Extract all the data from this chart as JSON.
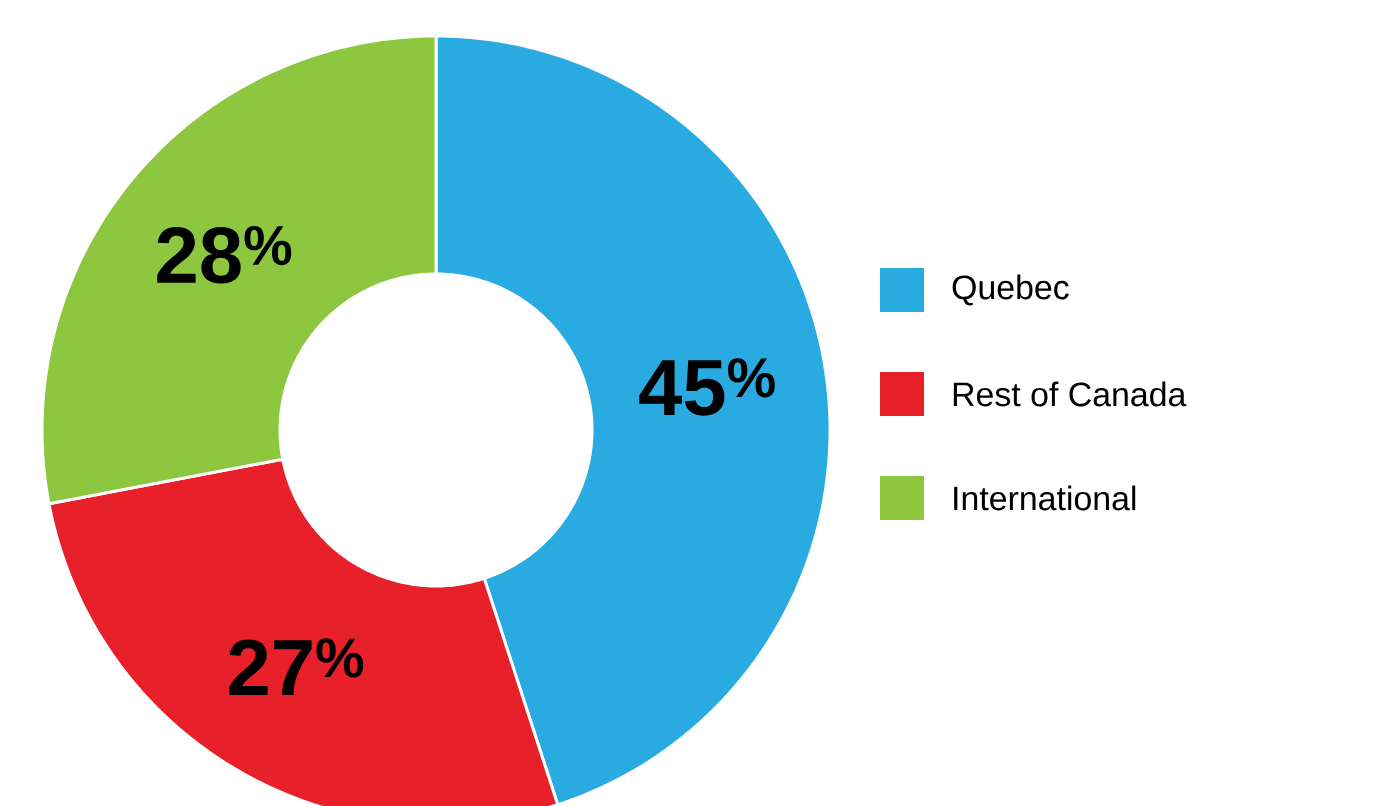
{
  "chart_data": {
    "type": "donut",
    "categories": [
      "Quebec",
      "Rest of Canada",
      "International"
    ],
    "values": [
      45,
      27,
      28
    ],
    "colors": [
      "#29abe2",
      "#e8202a",
      "#8dc63f"
    ],
    "value_labels": [
      "45$^{%}$",
      "27$^{%}$",
      "28$^{%}$"
    ],
    "legend": "right"
  }
}
